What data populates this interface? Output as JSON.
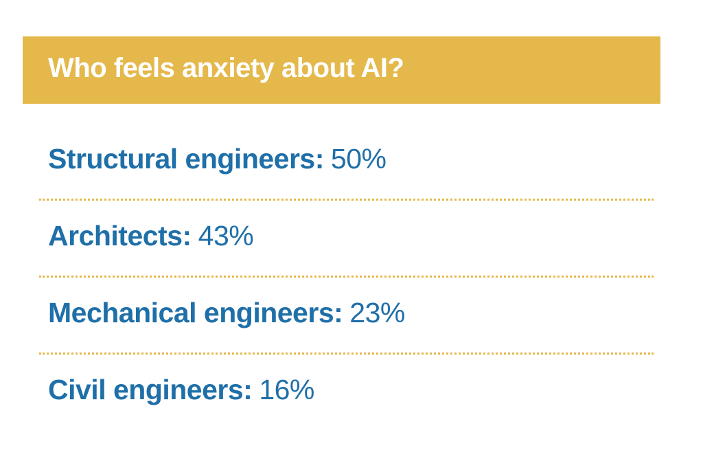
{
  "header": {
    "title": "Who feels anxiety about AI?"
  },
  "items": [
    {
      "label": "Structural engineers:",
      "value": "50%"
    },
    {
      "label": "Architects:",
      "value": "43%"
    },
    {
      "label": "Mechanical engineers:",
      "value": "23%"
    },
    {
      "label": "Civil engineers:",
      "value": "16%"
    }
  ]
}
